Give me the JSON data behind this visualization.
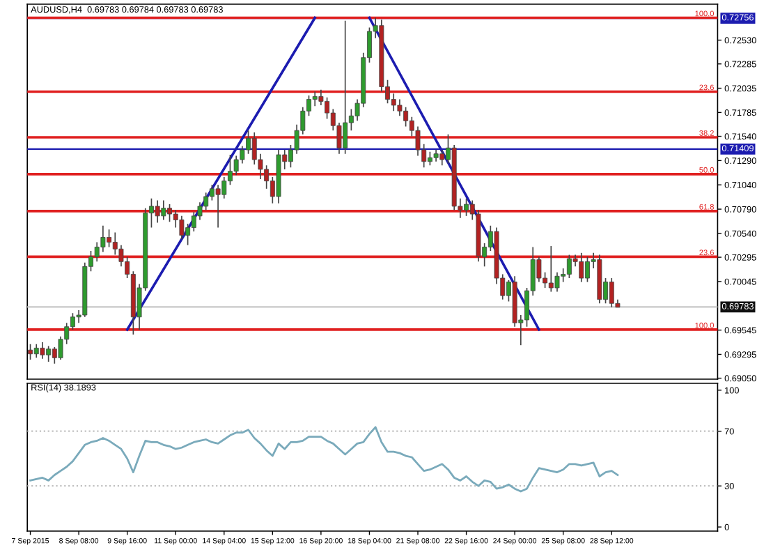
{
  "chart_data": [
    {
      "type": "candlestick",
      "title": "AUDUSD,H4  0.69783 0.69784 0.69783 0.69783",
      "categories": [
        null,
        null,
        null,
        null,
        null,
        null,
        null,
        null,
        null,
        null,
        null,
        null,
        null,
        null,
        null,
        null,
        null,
        null,
        null,
        null,
        null,
        null,
        null,
        null,
        null,
        null,
        null,
        null,
        null,
        null,
        null,
        null,
        null,
        null,
        null,
        null,
        null,
        null,
        null,
        null,
        null,
        null,
        null,
        null,
        null,
        null,
        null,
        null,
        null,
        null,
        null,
        null,
        null,
        null,
        null,
        null,
        null,
        null,
        null,
        null,
        null,
        null,
        null,
        null,
        null,
        null,
        null,
        null,
        null,
        null,
        null,
        null,
        null,
        null,
        null,
        null,
        null,
        null,
        null,
        null,
        null,
        null,
        null,
        null,
        null,
        null,
        null,
        null,
        null,
        null,
        null,
        null,
        null,
        null,
        null,
        null,
        null,
        null,
        null,
        null,
        null,
        null,
        null,
        null,
        null,
        null,
        null,
        null,
        null,
        null,
        null,
        null,
        null,
        null
      ],
      "ohlc": [
        [
          0.6934,
          0.694,
          0.6924,
          0.693
        ],
        [
          0.693,
          0.694,
          0.6926,
          0.6936
        ],
        [
          0.6936,
          0.6942,
          0.6925,
          0.6929
        ],
        [
          0.6929,
          0.6938,
          0.6922,
          0.6935
        ],
        [
          0.6935,
          0.6937,
          0.692,
          0.6926
        ],
        [
          0.6926,
          0.6948,
          0.6924,
          0.6945
        ],
        [
          0.6945,
          0.6962,
          0.694,
          0.6958
        ],
        [
          0.6958,
          0.6972,
          0.6955,
          0.6968
        ],
        [
          0.6968,
          0.6975,
          0.6962,
          0.697
        ],
        [
          0.697,
          0.7024,
          0.6968,
          0.702
        ],
        [
          0.702,
          0.7036,
          0.7015,
          0.703
        ],
        [
          0.703,
          0.7045,
          0.7025,
          0.704
        ],
        [
          0.704,
          0.7062,
          0.7035,
          0.705
        ],
        [
          0.705,
          0.7058,
          0.704,
          0.7045
        ],
        [
          0.7045,
          0.7055,
          0.7032,
          0.7038
        ],
        [
          0.7038,
          0.7042,
          0.702,
          0.7025
        ],
        [
          0.7025,
          0.703,
          0.7008,
          0.7012
        ],
        [
          0.7012,
          0.7015,
          0.695,
          0.6968
        ],
        [
          0.6968,
          0.7002,
          0.6955,
          0.6998
        ],
        [
          0.6998,
          0.708,
          0.6995,
          0.7075
        ],
        [
          0.7075,
          0.709,
          0.706,
          0.7082
        ],
        [
          0.7082,
          0.7088,
          0.7065,
          0.7072
        ],
        [
          0.7072,
          0.7088,
          0.7068,
          0.708
        ],
        [
          0.708,
          0.7084,
          0.7066,
          0.7074
        ],
        [
          0.7074,
          0.7078,
          0.706,
          0.7068
        ],
        [
          0.7068,
          0.7072,
          0.7048,
          0.7052
        ],
        [
          0.7052,
          0.7064,
          0.7042,
          0.706
        ],
        [
          0.706,
          0.7076,
          0.7056,
          0.7072
        ],
        [
          0.7072,
          0.7086,
          0.7068,
          0.7082
        ],
        [
          0.7082,
          0.7096,
          0.7078,
          0.7092
        ],
        [
          0.7092,
          0.7104,
          0.7088,
          0.71
        ],
        [
          0.71,
          0.7104,
          0.706,
          0.7094
        ],
        [
          0.7094,
          0.7112,
          0.709,
          0.7108
        ],
        [
          0.7108,
          0.7135,
          0.7104,
          0.7118
        ],
        [
          0.7118,
          0.7134,
          0.7114,
          0.713
        ],
        [
          0.713,
          0.7144,
          0.7126,
          0.714
        ],
        [
          0.714,
          0.716,
          0.7136,
          0.7152
        ],
        [
          0.7152,
          0.7158,
          0.7125,
          0.713
        ],
        [
          0.713,
          0.7136,
          0.711,
          0.712
        ],
        [
          0.712,
          0.7124,
          0.71,
          0.7108
        ],
        [
          0.7108,
          0.7112,
          0.7085,
          0.7092
        ],
        [
          0.7092,
          0.714,
          0.7085,
          0.7135
        ],
        [
          0.7135,
          0.714,
          0.712,
          0.7128
        ],
        [
          0.7128,
          0.7145,
          0.7122,
          0.714
        ],
        [
          0.714,
          0.7166,
          0.7136,
          0.716
        ],
        [
          0.716,
          0.7184,
          0.7156,
          0.718
        ],
        [
          0.718,
          0.7196,
          0.7175,
          0.7192
        ],
        [
          0.7192,
          0.72,
          0.7185,
          0.7195
        ],
        [
          0.7195,
          0.7202,
          0.7186,
          0.719
        ],
        [
          0.719,
          0.7194,
          0.7172,
          0.7178
        ],
        [
          0.7178,
          0.7182,
          0.716,
          0.7165
        ],
        [
          0.7165,
          0.7168,
          0.7136,
          0.7142
        ],
        [
          0.7142,
          0.7273,
          0.7136,
          0.7168
        ],
        [
          0.7168,
          0.7182,
          0.716,
          0.7175
        ],
        [
          0.7175,
          0.7192,
          0.717,
          0.7188
        ],
        [
          0.7188,
          0.724,
          0.7184,
          0.7235
        ],
        [
          0.7235,
          0.7266,
          0.723,
          0.7262
        ],
        [
          0.7262,
          0.7276,
          0.7255,
          0.7268
        ],
        [
          0.7268,
          0.7274,
          0.72,
          0.7205
        ],
        [
          0.7205,
          0.7212,
          0.7188,
          0.7192
        ],
        [
          0.7192,
          0.7198,
          0.718,
          0.7186
        ],
        [
          0.7186,
          0.7192,
          0.7175,
          0.718
        ],
        [
          0.718,
          0.7184,
          0.7164,
          0.717
        ],
        [
          0.717,
          0.7174,
          0.7154,
          0.716
        ],
        [
          0.716,
          0.7164,
          0.7134,
          0.714
        ],
        [
          0.714,
          0.7146,
          0.7122,
          0.7128
        ],
        [
          0.7128,
          0.7138,
          0.7124,
          0.7132
        ],
        [
          0.7132,
          0.714,
          0.7128,
          0.7136
        ],
        [
          0.7136,
          0.714,
          0.7124,
          0.713
        ],
        [
          0.713,
          0.7156,
          0.7126,
          0.7142
        ],
        [
          0.7142,
          0.7145,
          0.7078,
          0.7082
        ],
        [
          0.7082,
          0.709,
          0.707,
          0.7078
        ],
        [
          0.7078,
          0.709,
          0.7072,
          0.7084
        ],
        [
          0.7084,
          0.7088,
          0.7068,
          0.7074
        ],
        [
          0.7074,
          0.7078,
          0.7025,
          0.703
        ],
        [
          0.703,
          0.7044,
          0.702,
          0.704
        ],
        [
          0.704,
          0.7062,
          0.7036,
          0.7056
        ],
        [
          0.7056,
          0.706,
          0.7002,
          0.7008
        ],
        [
          0.7008,
          0.7012,
          0.6986,
          0.699
        ],
        [
          0.699,
          0.7006,
          0.6984,
          0.7004
        ],
        [
          0.7004,
          0.701,
          0.6958,
          0.6962
        ],
        [
          0.6962,
          0.697,
          0.6939,
          0.6965
        ],
        [
          0.6965,
          0.6998,
          0.6958,
          0.6995
        ],
        [
          0.6995,
          0.704,
          0.699,
          0.7027
        ],
        [
          0.7027,
          0.703,
          0.7004,
          0.7008
        ],
        [
          0.7008,
          0.7014,
          0.6998,
          0.7003
        ],
        [
          0.7003,
          0.7041,
          0.6994,
          0.6998
        ],
        [
          0.6998,
          0.7014,
          0.6994,
          0.701
        ],
        [
          0.701,
          0.7018,
          0.7004,
          0.7012
        ],
        [
          0.7012,
          0.7032,
          0.7008,
          0.7028
        ],
        [
          0.7028,
          0.7032,
          0.702,
          0.7025
        ],
        [
          0.7025,
          0.7034,
          0.7004,
          0.7008
        ],
        [
          0.7008,
          0.703,
          0.7004,
          0.7025
        ],
        [
          0.7025,
          0.7034,
          0.7018,
          0.7027
        ],
        [
          0.7027,
          0.7032,
          0.6982,
          0.6986
        ],
        [
          0.6986,
          0.7008,
          0.6982,
          0.7004
        ],
        [
          0.7004,
          0.7008,
          0.6978,
          0.6982
        ],
        [
          0.6982,
          0.6986,
          0.6978,
          0.6978
        ],
        null,
        null,
        null,
        null,
        null,
        null,
        null,
        null,
        null,
        null,
        null,
        null,
        null,
        null,
        null,
        null
      ],
      "colors": [
        "#b22222",
        "#2e9b2e",
        "#b22222",
        "#2e9b2e",
        "#b22222",
        "#2e9b2e",
        "#2e9b2e",
        "#2e9b2e",
        "#2e9b2e",
        "#2e9b2e",
        "#2e9b2e",
        "#2e9b2e",
        "#2e9b2e",
        "#b22222",
        "#b22222",
        "#b22222",
        "#b22222",
        "#b22222",
        "#2e9b2e",
        "#2e9b2e",
        "#2e9b2e",
        "#b22222",
        "#2e9b2e",
        "#b22222",
        "#b22222",
        "#b22222",
        "#2e9b2e",
        "#2e9b2e",
        "#2e9b2e",
        "#2e9b2e",
        "#2e9b2e",
        "#b22222",
        "#2e9b2e",
        "#2e9b2e",
        "#2e9b2e",
        "#2e9b2e",
        "#2e9b2e",
        "#b22222",
        "#b22222",
        "#b22222",
        "#b22222",
        "#2e9b2e",
        "#b22222",
        "#2e9b2e",
        "#2e9b2e",
        "#2e9b2e",
        "#2e9b2e",
        "#2e9b2e",
        "#b22222",
        "#b22222",
        "#b22222",
        "#b22222",
        "#2e9b2e",
        "#2e9b2e",
        "#2e9b2e",
        "#2e9b2e",
        "#2e9b2e",
        "#2e9b2e",
        "#b22222",
        "#b22222",
        "#b22222",
        "#b22222",
        "#b22222",
        "#b22222",
        "#b22222",
        "#b22222",
        "#2e9b2e",
        "#2e9b2e",
        "#b22222",
        "#2e9b2e",
        "#b22222",
        "#b22222",
        "#2e9b2e",
        "#b22222",
        "#b22222",
        "#2e9b2e",
        "#2e9b2e",
        "#b22222",
        "#b22222",
        "#2e9b2e",
        "#b22222",
        "#2e9b2e",
        "#2e9b2e",
        "#2e9b2e",
        "#b22222",
        "#b22222",
        "#b22222",
        "#2e9b2e",
        "#2e9b2e",
        "#2e9b2e",
        "#b22222",
        "#b22222",
        "#2e9b2e",
        "#2e9b2e",
        "#b22222",
        "#2e9b2e",
        "#b22222",
        "#b22222",
        null,
        null,
        null,
        null,
        null,
        null,
        null,
        null,
        null,
        null,
        null,
        null,
        null,
        null,
        null,
        null
      ],
      "series": [
        {
          "type": "line",
          "color": "#1c1cb0",
          "values": [
            null,
            null,
            null,
            null,
            null,
            null,
            null,
            null,
            null,
            null,
            null,
            null,
            null,
            null,
            null,
            null,
            0.6955,
            null,
            null,
            null,
            null,
            null,
            null,
            null,
            null,
            null,
            null,
            null,
            null,
            null,
            null,
            null,
            null,
            null,
            null,
            null,
            null,
            null,
            null,
            null,
            null,
            null,
            null,
            null,
            null,
            null,
            null,
            0.7276,
            null,
            null,
            null,
            null,
            null,
            null,
            null,
            null,
            null,
            null,
            null,
            null,
            null,
            null,
            null,
            null,
            null,
            null,
            null,
            null,
            null,
            null,
            null,
            null,
            null,
            null,
            null,
            null,
            null,
            null,
            null,
            null,
            null,
            null,
            null,
            null,
            null,
            null,
            null,
            null,
            null,
            null,
            null,
            null,
            null,
            null,
            null,
            null,
            null,
            null,
            null,
            null,
            null,
            null,
            null,
            null,
            null,
            null,
            null,
            null,
            null,
            null,
            null,
            null,
            null,
            null
          ]
        },
        {
          "type": "line",
          "color": "#1c1cb0",
          "values": [
            null,
            null,
            null,
            null,
            null,
            null,
            null,
            null,
            null,
            null,
            null,
            null,
            null,
            null,
            null,
            null,
            null,
            null,
            null,
            null,
            null,
            null,
            null,
            null,
            null,
            null,
            null,
            null,
            null,
            null,
            null,
            null,
            null,
            null,
            null,
            null,
            null,
            null,
            null,
            null,
            null,
            null,
            null,
            null,
            null,
            null,
            null,
            null,
            null,
            null,
            null,
            null,
            null,
            null,
            null,
            null,
            0.7276,
            null,
            null,
            null,
            null,
            null,
            null,
            null,
            null,
            null,
            null,
            null,
            null,
            null,
            null,
            null,
            null,
            null,
            null,
            null,
            null,
            null,
            null,
            null,
            null,
            null,
            null,
            null,
            0.6955,
            null,
            null,
            null,
            null,
            null,
            null,
            null,
            null,
            null,
            null,
            null,
            null,
            null,
            null,
            null,
            null,
            null,
            null,
            null,
            null,
            null,
            null,
            null,
            null,
            null,
            null,
            null,
            null,
            null
          ]
        }
      ],
      "ref_lines": [
        {
          "axis": "y",
          "value": 0.69783,
          "label": "0.69783",
          "color": "#c8c8c8"
        },
        {
          "axis": "y",
          "value": 0.72756,
          "label": "0.72756",
          "color": "#1c1cb0"
        },
        {
          "axis": "y",
          "value": 0.71409,
          "label": "0.71409",
          "color": "#1c1cb0"
        },
        {
          "axis": "y",
          "value": 0.7276,
          "color": "#e02020"
        },
        {
          "axis": "y",
          "value": 0.72,
          "color": "#e02020"
        },
        {
          "axis": "y",
          "value": 0.7153,
          "color": "#e02020"
        },
        {
          "axis": "y",
          "value": 0.7115,
          "color": "#e02020"
        },
        {
          "axis": "y",
          "value": 0.7077,
          "color": "#e02020"
        },
        {
          "axis": "y",
          "value": 0.703,
          "color": "#e02020"
        },
        {
          "axis": "y",
          "value": 0.6955,
          "color": "#e02020"
        }
      ],
      "annotations": [
        {
          "text": "100.0",
          "y": 0.7276
        },
        {
          "text": "23.6",
          "y": 0.72
        },
        {
          "text": "38.2",
          "y": 0.7153
        },
        {
          "text": "50.0",
          "y": 0.7115
        },
        {
          "text": "61.8",
          "y": 0.7077
        },
        {
          "text": "23.6",
          "y": 0.703
        },
        {
          "text": "100.0",
          "y": 0.6955
        }
      ],
      "ylim": [
        0.6904,
        0.729
      ],
      "yticks": [
        {
          "value": 0.7253,
          "label": "0.72530"
        },
        {
          "value": 0.72285,
          "label": "0.72285"
        },
        {
          "value": 0.72035,
          "label": "0.72035"
        },
        {
          "value": 0.71785,
          "label": "0.71785"
        },
        {
          "value": 0.7154,
          "label": "0.71540"
        },
        {
          "value": 0.7129,
          "label": "0.71290"
        },
        {
          "value": 0.7104,
          "label": "0.71040"
        },
        {
          "value": 0.7079,
          "label": "0.70790"
        },
        {
          "value": 0.7054,
          "label": "0.70540"
        },
        {
          "value": 0.70295,
          "label": "0.70295"
        },
        {
          "value": 0.70045,
          "label": "0.70045"
        },
        {
          "value": 0.69545,
          "label": "0.69545"
        },
        {
          "value": 0.69295,
          "label": "0.69295"
        },
        {
          "value": 0.6905,
          "label": "0.69050"
        }
      ],
      "tick_labels": "y",
      "grid": false
    },
    {
      "type": "line",
      "title": "RSI(14) 38.1893",
      "categories": [
        "7 Sep 2015",
        null,
        null,
        null,
        null,
        null,
        null,
        null,
        "8 Sep 08:00",
        null,
        null,
        null,
        null,
        null,
        null,
        null,
        "9 Sep 16:00",
        null,
        null,
        null,
        null,
        null,
        null,
        null,
        "11 Sep 00:00",
        null,
        null,
        null,
        null,
        null,
        null,
        null,
        "14 Sep 04:00",
        null,
        null,
        null,
        null,
        null,
        null,
        null,
        "15 Sep 12:00",
        null,
        null,
        null,
        null,
        null,
        null,
        null,
        "16 Sep 20:00",
        null,
        null,
        null,
        null,
        null,
        null,
        null,
        "18 Sep 04:00",
        null,
        null,
        null,
        null,
        null,
        null,
        null,
        "21 Sep 08:00",
        null,
        null,
        null,
        null,
        null,
        null,
        null,
        "22 Sep 16:00",
        null,
        null,
        null,
        null,
        null,
        null,
        null,
        "24 Sep 00:00",
        null,
        null,
        null,
        null,
        null,
        null,
        null,
        "25 Sep 08:00",
        null,
        null,
        null,
        null,
        null,
        null,
        null,
        "28 Sep 12:00",
        null,
        null,
        null,
        null,
        null,
        null,
        null,
        null,
        null,
        null,
        null,
        null,
        null,
        null,
        null,
        null,
        null
      ],
      "series": [
        {
          "color": "#7aaabb",
          "values": [
            34,
            35,
            36,
            34,
            38,
            41,
            44,
            48,
            54,
            60,
            62,
            63,
            65,
            63,
            60,
            57,
            50,
            40,
            52,
            63,
            62,
            62,
            60,
            59,
            57,
            58,
            60,
            62,
            63,
            64,
            62,
            61,
            64,
            67,
            69,
            69,
            71,
            65,
            61,
            56,
            52,
            61,
            57,
            62,
            62,
            63,
            66,
            66,
            66,
            63,
            61,
            57,
            53,
            57,
            61,
            62,
            68,
            73,
            62,
            55,
            55,
            54,
            52,
            51,
            46,
            41,
            42,
            44,
            46,
            42,
            36,
            34,
            37,
            33,
            30,
            34,
            33,
            28,
            29,
            31,
            28,
            26,
            28,
            36,
            43,
            42,
            41,
            40,
            42,
            46,
            46,
            45,
            46,
            47,
            37,
            40,
            41,
            38,
            null,
            null,
            null,
            null,
            null,
            null,
            null,
            null,
            null,
            null,
            null,
            null,
            null,
            null,
            null,
            null
          ]
        }
      ],
      "ref_lines": [
        {
          "axis": "y",
          "value": 30,
          "color": "#c0c0c0",
          "line_style": "dotted"
        },
        {
          "axis": "y",
          "value": 70,
          "color": "#c0c0c0",
          "line_style": "dotted"
        }
      ],
      "ylim": [
        -3,
        105
      ],
      "yticks": [
        0,
        30,
        70,
        100
      ],
      "grid": false
    }
  ]
}
